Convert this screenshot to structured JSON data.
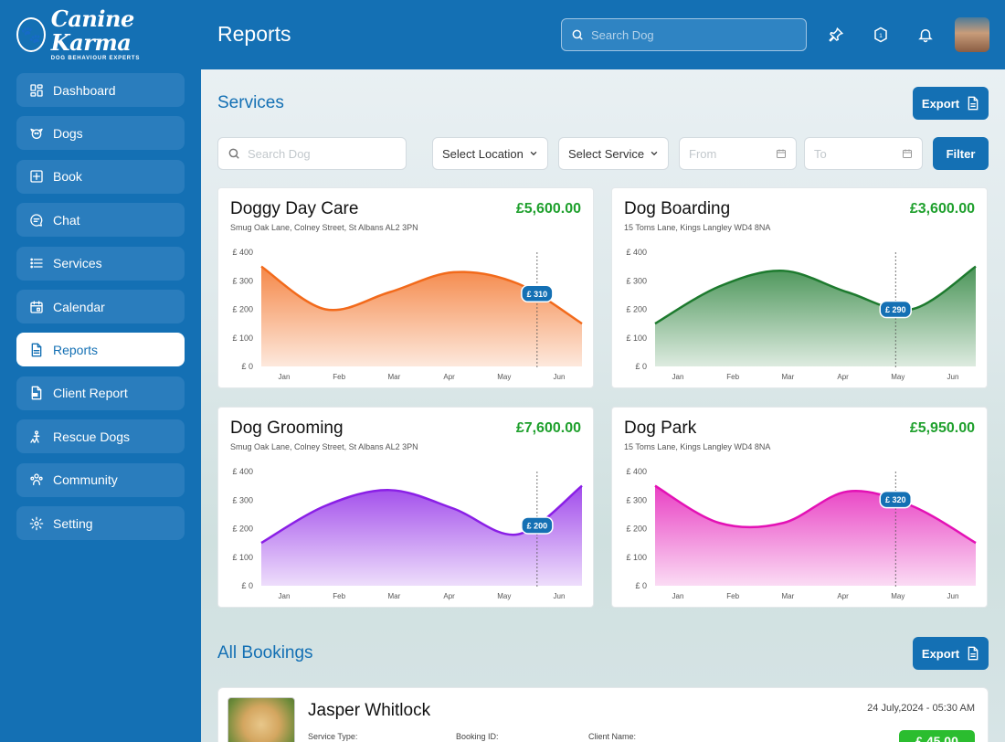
{
  "brand": {
    "name": "Canine Karma",
    "tagline": "DOG BEHAVIOUR EXPERTS"
  },
  "sidebar": {
    "items": [
      {
        "label": "Dashboard",
        "icon": "dashboard-icon",
        "active": false
      },
      {
        "label": "Dogs",
        "icon": "dog-icon",
        "active": false
      },
      {
        "label": "Book",
        "icon": "plus-square-icon",
        "active": false
      },
      {
        "label": "Chat",
        "icon": "chat-icon",
        "active": false
      },
      {
        "label": "Services",
        "icon": "list-icon",
        "active": false
      },
      {
        "label": "Calendar",
        "icon": "calendar-icon",
        "active": false
      },
      {
        "label": "Reports",
        "icon": "document-icon",
        "active": true
      },
      {
        "label": "Client Report",
        "icon": "pdf-icon",
        "active": false
      },
      {
        "label": "Rescue Dogs",
        "icon": "rescue-icon",
        "active": false
      },
      {
        "label": "Community",
        "icon": "community-icon",
        "active": false
      },
      {
        "label": "Setting",
        "icon": "gear-icon",
        "active": false
      }
    ]
  },
  "header": {
    "title": "Reports",
    "search_placeholder": "Search Dog",
    "icons": [
      "pin-icon",
      "shield-icon",
      "bell-icon"
    ]
  },
  "services": {
    "title": "Services",
    "export_label": "Export",
    "filters": {
      "search_placeholder": "Search Dog",
      "location_label": "Select Location",
      "service_label": "Select Service",
      "from_placeholder": "From",
      "to_placeholder": "To",
      "filter_label": "Filter"
    }
  },
  "chart_data": [
    {
      "type": "area",
      "title": "Doggy Day Care",
      "subtitle": "Smug Oak Lane, Colney Street, St Albans AL2 3PN",
      "amount": "£5,600.00",
      "categories": [
        "Jan",
        "Feb",
        "Mar",
        "Apr",
        "May",
        "Jun"
      ],
      "y_ticks": [
        "£ 0",
        "£ 100",
        "£ 200",
        "£ 300",
        "£ 400"
      ],
      "ylim": [
        0,
        400
      ],
      "values": [
        350,
        200,
        260,
        330,
        290,
        150
      ],
      "highlight": {
        "x": 4.3,
        "label": "£ 310"
      },
      "color": "#f26a1b"
    },
    {
      "type": "area",
      "title": "Dog Boarding",
      "subtitle": "15 Toms Lane, Kings Langley WD4 8NA",
      "amount": "£3,600.00",
      "categories": [
        "Jan",
        "Feb",
        "Mar",
        "Apr",
        "May",
        "Jun"
      ],
      "y_ticks": [
        "£ 0",
        "£ 100",
        "£ 200",
        "£ 300",
        "£ 400"
      ],
      "ylim": [
        0,
        400
      ],
      "values": [
        150,
        280,
        335,
        260,
        200,
        350
      ],
      "highlight": {
        "x": 3.75,
        "label": "£ 290"
      },
      "color": "#1d7a2e"
    },
    {
      "type": "area",
      "title": "Dog Grooming",
      "subtitle": "Smug Oak Lane, Colney Street, St Albans AL2 3PN",
      "amount": "£7,600.00",
      "categories": [
        "Jan",
        "Feb",
        "Mar",
        "Apr",
        "May",
        "Jun"
      ],
      "y_ticks": [
        "£ 0",
        "£ 100",
        "£ 200",
        "£ 300",
        "£ 400"
      ],
      "ylim": [
        0,
        400
      ],
      "values": [
        150,
        280,
        335,
        270,
        180,
        350
      ],
      "highlight": {
        "x": 4.3,
        "label": "£ 200"
      },
      "color": "#8a1fe6"
    },
    {
      "type": "area",
      "title": "Dog Park",
      "subtitle": "15 Toms Lane, Kings Langley WD4 8NA",
      "amount": "£5,950.00",
      "categories": [
        "Jan",
        "Feb",
        "Mar",
        "Apr",
        "May",
        "Jun"
      ],
      "y_ticks": [
        "£ 0",
        "£ 100",
        "£ 200",
        "£ 300",
        "£ 400"
      ],
      "ylim": [
        0,
        400
      ],
      "values": [
        350,
        220,
        220,
        330,
        280,
        150
      ],
      "highlight": {
        "x": 3.75,
        "label": "£ 320"
      },
      "color": "#e311b5"
    }
  ],
  "bookings": {
    "title": "All Bookings",
    "export_label": "Export",
    "items": [
      {
        "name": "Jasper Whitlock",
        "datetime": "24 July,2024 - 05:30 AM",
        "service_type_label": "Service Type:",
        "booking_id_label": "Booking ID:",
        "client_name_label": "Client Name:",
        "price": "£ 45.00"
      }
    ]
  }
}
